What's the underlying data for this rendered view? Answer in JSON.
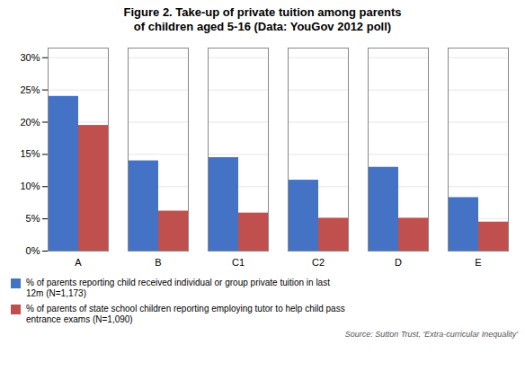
{
  "chart_data": {
    "type": "bar",
    "title": "Figure 2. Take-up of private tuition among parents\nof children aged 5-16 (Data: YouGov 2012 poll)",
    "categories": [
      "A",
      "B",
      "C1",
      "C2",
      "D",
      "E"
    ],
    "series": [
      {
        "name": "% of parents reporting child received individual or group private tuition in last\n12m (N=1,173)",
        "color": "#4472C4",
        "values": [
          0.24,
          0.14,
          0.145,
          0.11,
          0.13,
          0.083
        ]
      },
      {
        "name": "% of parents of state school children reporting employing tutor to help child pass\nentrance exams (N=1,090)",
        "color": "#C0504D",
        "values": [
          0.195,
          0.062,
          0.059,
          0.051,
          0.051,
          0.045
        ]
      }
    ],
    "ylim": [
      0,
      0.315
    ],
    "yticks": [
      {
        "value": 0,
        "label": "0%"
      },
      {
        "value": 0.05,
        "label": "5%"
      },
      {
        "value": 0.1,
        "label": "10%"
      },
      {
        "value": 0.15,
        "label": "15%"
      },
      {
        "value": 0.2,
        "label": "20%"
      },
      {
        "value": 0.25,
        "label": "25%"
      },
      {
        "value": 0.3,
        "label": "30%"
      }
    ],
    "grid": true,
    "legend": "lower left",
    "source": "Source: Sutton Trust, 'Extra-curricular Inequality'"
  }
}
